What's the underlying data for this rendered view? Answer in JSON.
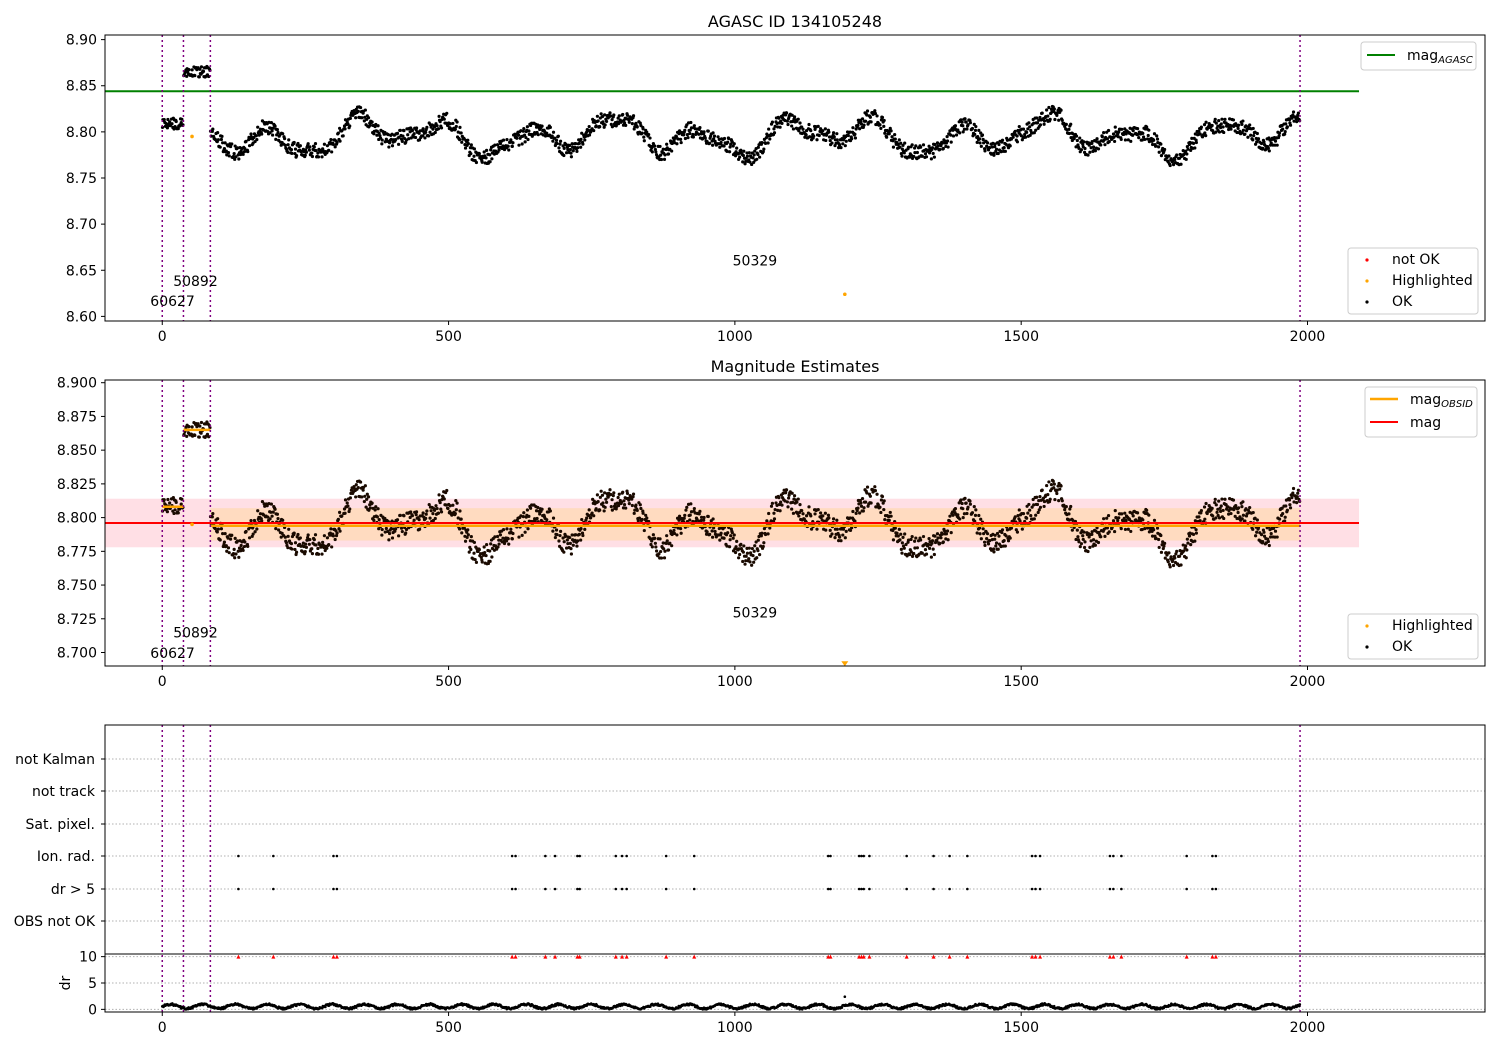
{
  "figure": {
    "main_title": "AGASC ID 134105248",
    "colors": {
      "ok": "#000000",
      "highlighted": "#ffa500",
      "not_ok": "#ff0000",
      "mag_agasc": "#008000",
      "mag_obsid": "#ffa500",
      "mag": "#ff0000",
      "band_outer": "#ffc0cb",
      "band_inner": "#ffd8b0",
      "obs_boundary": "#800080",
      "grid": "#b0b0b0"
    }
  },
  "chart_data": [
    {
      "type": "scatter",
      "title": "AGASC ID 134105248",
      "xlim": [
        -100,
        2310
      ],
      "ylim": [
        8.595,
        8.905
      ],
      "xticks": [
        "0",
        "500",
        "1000",
        "1500",
        "2000"
      ],
      "yticks": [
        "8.60",
        "8.65",
        "8.70",
        "8.75",
        "8.80",
        "8.85",
        "8.90"
      ],
      "legend_top": {
        "placement": "top-right",
        "entries": [
          "mag",
          "AGASC"
        ]
      },
      "legend_bottom": {
        "placement": "bottom-right",
        "entries": [
          "not OK",
          "Highlighted",
          "OK"
        ]
      },
      "reference_lines": [
        {
          "name": "mag AGASC",
          "y": 8.844,
          "x_range": [
            -100,
            2090
          ]
        }
      ],
      "obs_boundaries": [
        0,
        37,
        84,
        1987
      ],
      "obsid_labels": [
        {
          "text": "60627",
          "x": 18,
          "y": 8.611
        },
        {
          "text": "50892",
          "x": 58,
          "y": 8.633
        },
        {
          "text": "50329",
          "x": 1035,
          "y": 8.655
        }
      ],
      "highlighted_points": [
        {
          "x": 52,
          "y": 8.795
        },
        {
          "x": 1192,
          "y": 8.624
        }
      ]
    },
    {
      "type": "scatter",
      "title": "Magnitude Estimates",
      "xlim": [
        -100,
        2310
      ],
      "ylim": [
        8.69,
        8.902
      ],
      "xticks": [
        "0",
        "500",
        "1000",
        "1500",
        "2000"
      ],
      "yticks": [
        "8.700",
        "8.725",
        "8.750",
        "8.775",
        "8.800",
        "8.825",
        "8.850",
        "8.875",
        "8.900"
      ],
      "legend_top": {
        "placement": "top-right",
        "entries": [
          "mag",
          "OBSID",
          "mag"
        ]
      },
      "legend_bottom": {
        "placement": "bottom-right",
        "entries": [
          "Highlighted",
          "OK"
        ]
      },
      "mag_line": {
        "y": 8.796,
        "x_range": [
          -100,
          2090
        ]
      },
      "outer_band": [
        8.778,
        8.814
      ],
      "inner_band": [
        8.783,
        8.807
      ],
      "obsid_segments": [
        {
          "x_range": [
            0,
            37
          ],
          "y": 8.808
        },
        {
          "x_range": [
            37,
            84
          ],
          "y": 8.865
        },
        {
          "x_range": [
            84,
            1987
          ],
          "y": 8.794
        }
      ],
      "obs_boundaries": [
        0,
        37,
        84,
        1987
      ],
      "obsid_labels": [
        {
          "text": "60627",
          "x": 18,
          "y": 8.696
        },
        {
          "text": "50892",
          "x": 58,
          "y": 8.711
        },
        {
          "text": "50329",
          "x": 1035,
          "y": 8.726
        }
      ],
      "highlighted_points": [
        {
          "x": 52,
          "y": 8.795
        },
        {
          "x": 1192,
          "y": 8.692
        }
      ]
    },
    {
      "type": "scatter",
      "title": "",
      "xlim": [
        -100,
        2310
      ],
      "xticks": [
        "0",
        "500",
        "1000",
        "1500",
        "2000"
      ],
      "flag_rows": [
        "not Kalman",
        "not track",
        "Sat. pixel.",
        "Ion. rad.",
        "dr > 5",
        "OBS not OK"
      ],
      "flag_events_x": [
        133,
        194,
        299,
        305,
        611,
        617,
        669,
        686,
        725,
        729,
        792,
        803,
        811,
        880,
        929,
        1163,
        1167,
        1217,
        1221,
        1225,
        1235,
        1300,
        1347,
        1375,
        1406,
        1519,
        1525,
        1533,
        1655,
        1661,
        1675,
        1789,
        1834,
        1840
      ],
      "flagged_rows": [
        "Ion. rad.",
        "dr > 5"
      ],
      "dr_axis": {
        "ylabel": "dr",
        "yticks": [
          "0",
          "5",
          "10"
        ],
        "ylim": [
          -0.5,
          10.5
        ]
      },
      "obs_boundaries": [
        0,
        37,
        84,
        1987
      ]
    }
  ]
}
